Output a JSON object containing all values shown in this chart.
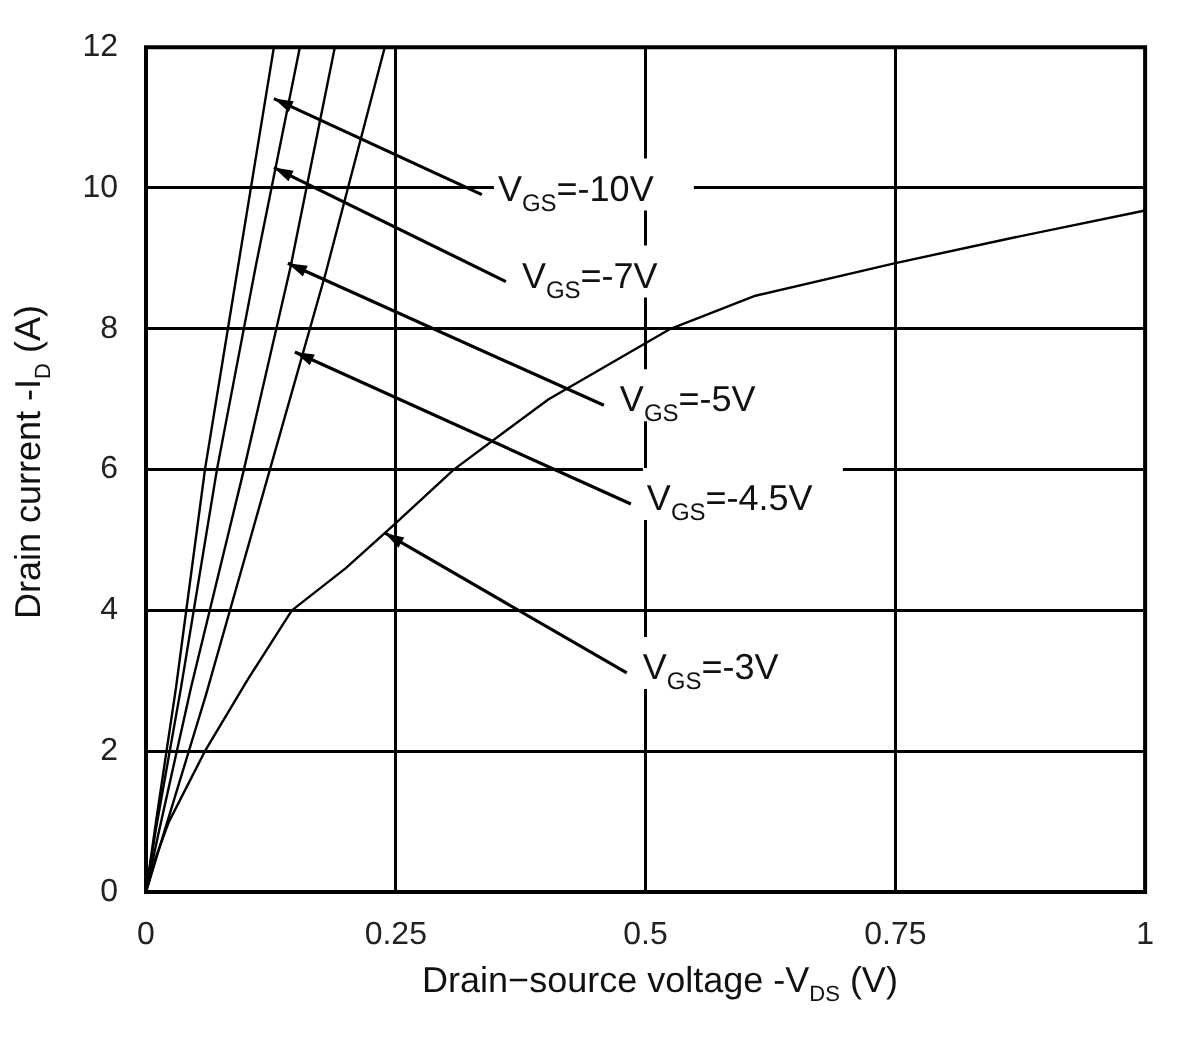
{
  "chart_data": {
    "type": "line",
    "xlabel": "Drain−source voltage -V$_{DS}$ (V)",
    "ylabel": "Drain current -I$_{D}$ (A)",
    "xlim": [
      0,
      1
    ],
    "xticks": [
      0,
      0.25,
      0.5,
      0.75,
      1
    ],
    "ylim": [
      0,
      12
    ],
    "yticks": [
      0,
      2,
      4,
      6,
      8,
      10,
      12
    ],
    "grid": true,
    "legend": false,
    "marker": "none",
    "line_style": "solid",
    "series": [
      {
        "color": "#000000",
        "x": [
          0,
          0.01,
          0.03,
          0.059,
          0.09,
          0.128
        ],
        "values": [
          0,
          1,
          2.9,
          6,
          8.7,
          12
        ]
      },
      {
        "color": "#000000",
        "x": [
          0,
          0.01,
          0.035,
          0.071,
          0.11,
          0.154
        ],
        "values": [
          0,
          0.9,
          2.9,
          6,
          8.9,
          12
        ]
      },
      {
        "color": "#000000",
        "x": [
          0,
          0.012,
          0.045,
          0.098,
          0.145,
          0.189
        ],
        "values": [
          0,
          0.8,
          2.9,
          6,
          8.9,
          12
        ]
      },
      {
        "color": "#000000",
        "x": [
          0,
          0.015,
          0.06,
          0.124,
          0.18,
          0.239
        ],
        "values": [
          0,
          0.7,
          2.8,
          6,
          8.8,
          12
        ]
      },
      {
        "color": "#000000",
        "x": [
          0,
          0.01,
          0.023,
          0.059,
          0.101,
          0.146,
          0.2,
          0.247,
          0.308,
          0.403,
          0.525,
          0.61,
          0.749,
          0.87,
          1
        ],
        "values": [
          0,
          0.5,
          1,
          2,
          3,
          4,
          4.6,
          5.2,
          6,
          7,
          8,
          8.47,
          8.93,
          9.3,
          9.68
        ]
      }
    ],
    "annotations": [
      {
        "text": "V$_{GS}$=-10V",
        "x": 0.128,
        "y": 11.27
      },
      {
        "text": "V$_{GS}$=-7V",
        "x": 0.128,
        "y": 10.29
      },
      {
        "text": "V$_{GS}$=-5V",
        "x": 0.142,
        "y": 8.93
      },
      {
        "text": "V$_{GS}$=-4.5V",
        "x": 0.149,
        "y": 7.67
      },
      {
        "text": "V$_{GS}$=-3V",
        "x": 0.239,
        "y": 5.1
      }
    ]
  }
}
